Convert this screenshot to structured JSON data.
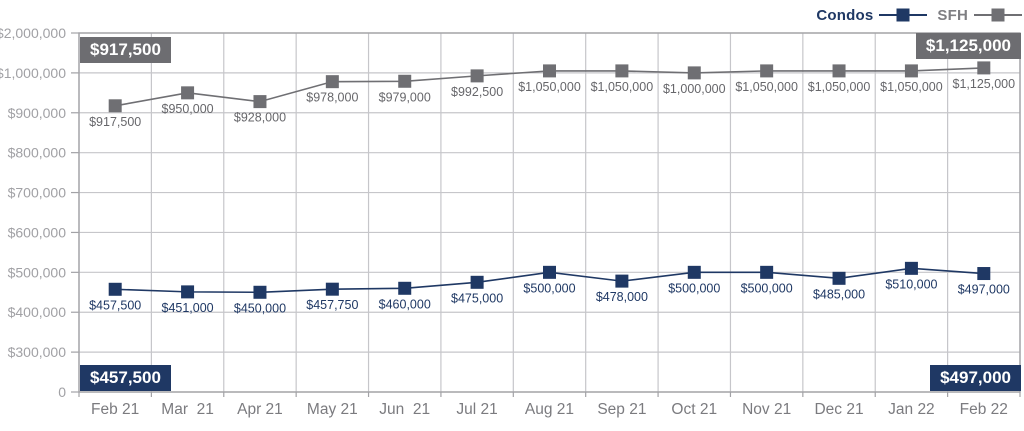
{
  "chart_data": {
    "type": "line",
    "title": "",
    "categories": [
      "Feb 21",
      "Mar  21",
      "Apr 21",
      "May 21",
      "Jun  21",
      "Jul 21",
      "Aug 21",
      "Sep 21",
      "Oct 21",
      "Nov 21",
      "Dec 21",
      "Jan 22",
      "Feb 22"
    ],
    "series": [
      {
        "name": "Condos",
        "color": "#1f3864",
        "label_color": "#1f3864",
        "values": [
          457500,
          451000,
          450000,
          457750,
          460000,
          475000,
          500000,
          478000,
          500000,
          500000,
          485000,
          510000,
          497000
        ],
        "labels": [
          "$457,500",
          "$451,000",
          "$450,000",
          "$457,750",
          "$460,000",
          "$475,000",
          "$500,000",
          "$478,000",
          "$500,000",
          "$500,000",
          "$485,000",
          "$510,000",
          "$497,000"
        ]
      },
      {
        "name": "SFH",
        "color": "#6f6f73",
        "label_color": "#66666a",
        "values": [
          917500,
          950000,
          928000,
          978000,
          979000,
          992500,
          1050000,
          1050000,
          1000000,
          1050000,
          1050000,
          1050000,
          1125000
        ],
        "labels": [
          "$917,500",
          "$950,000",
          "$928,000",
          "$978,000",
          "$979,000",
          "$992,500",
          "$1,050,000",
          "$1,050,000",
          "$1,000,000",
          "$1,050,000",
          "$1,050,000",
          "$1,050,000",
          "$1,125,000"
        ]
      }
    ],
    "y_axis": {
      "tick_values": [
        2000000,
        1000000,
        900000,
        800000,
        700000,
        600000,
        500000,
        400000,
        300000,
        0
      ],
      "tick_labels": [
        "$2,000,000",
        "$1,000,000",
        "$900,000",
        "$800,000",
        "$700,000",
        "$600,000",
        "$500,000",
        "$400,000",
        "$300,000",
        "0"
      ]
    },
    "grid": true,
    "legend_position": "top-right",
    "callouts": {
      "sfh_start": "$917,500",
      "sfh_end": "$1,125,000",
      "condos_start": "$457,500",
      "condos_end": "$497,000"
    }
  },
  "colors": {
    "navy": "#1f3864",
    "gray": "#6f6f73",
    "gridline": "#c6c6ca",
    "border": "#a2a2a6",
    "y_tick_text": "#a1a1a5",
    "x_tick_text": "#7b7b7f",
    "callout_gray_bg": "#6d6d71",
    "callout_navy_bg": "#1f3864"
  }
}
